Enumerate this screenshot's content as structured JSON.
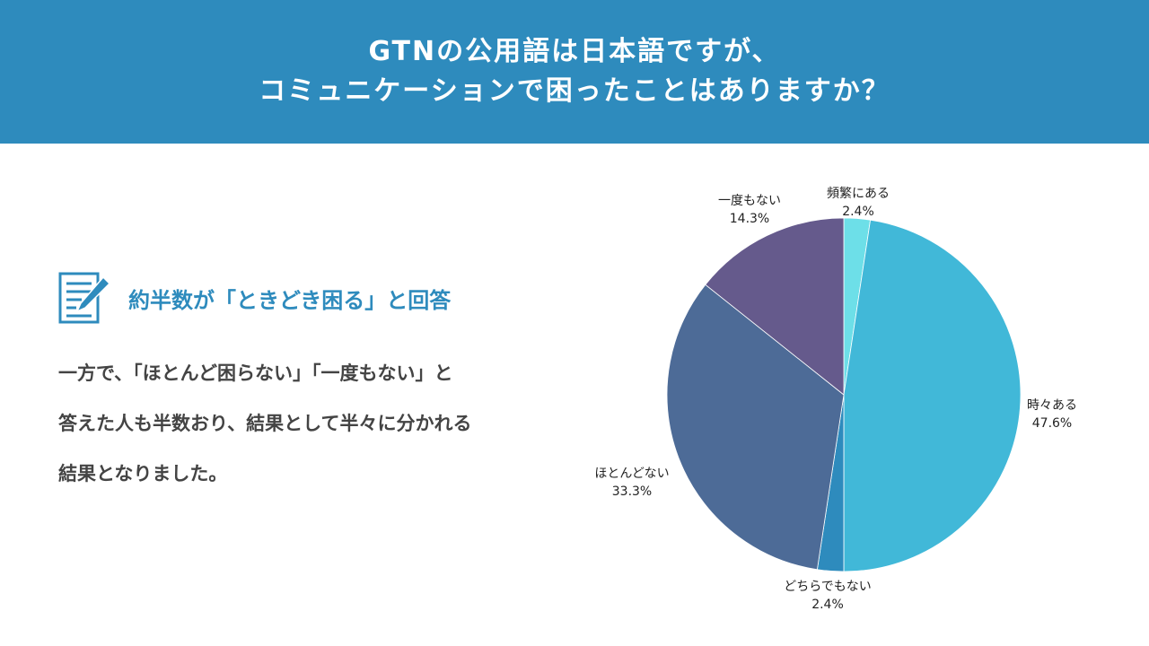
{
  "header": {
    "line1": "GTNの公用語は日本語ですが、",
    "line2": "コミュニケーションで困ったことはありますか？"
  },
  "section": {
    "icon": "memo-pencil-icon",
    "heading": "約半数が「ときどき困る」と回答",
    "body_lines": [
      "一方で、「ほとんど困らない」「一度もない」と",
      "答えた人も半数おり、結果として半々に分かれる",
      "結果となりました。"
    ]
  },
  "colors": {
    "header_bg": "#2e8bbd",
    "accent": "#2e8bbd",
    "body_text": "#444444"
  },
  "chart_data": {
    "type": "pie",
    "start_angle_deg": 0,
    "direction": "clockwise",
    "slices": [
      {
        "label": "頻繁にある",
        "value": 2.4,
        "display": "2.4%",
        "color": "#6ddfe8"
      },
      {
        "label": "時々ある",
        "value": 47.6,
        "display": "47.6%",
        "color": "#41b8d8"
      },
      {
        "label": "どちらでもない",
        "value": 2.4,
        "display": "2.4%",
        "color": "#2e8bbd"
      },
      {
        "label": "ほとんどない",
        "value": 33.3,
        "display": "33.3%",
        "color": "#4d6b97"
      },
      {
        "label": "一度もない",
        "value": 14.3,
        "display": "14.3%",
        "color": "#655a8c"
      }
    ]
  }
}
